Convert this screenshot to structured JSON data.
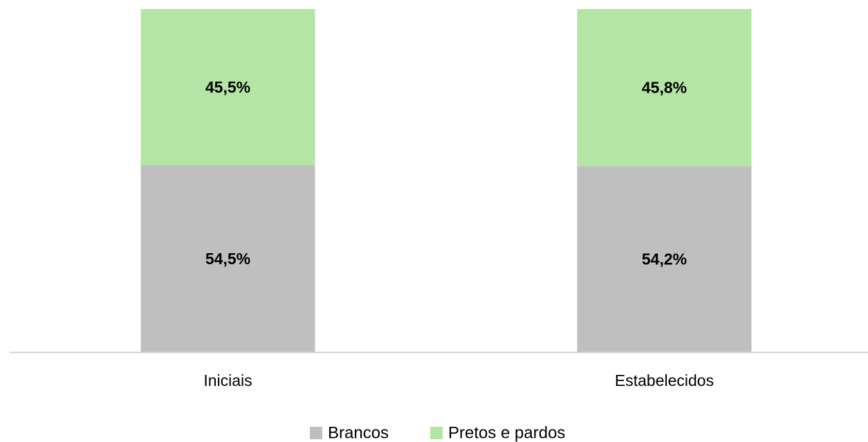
{
  "chart_data": {
    "type": "stacked_bar",
    "categories": [
      "Iniciais",
      "Estabelecidos"
    ],
    "series": [
      {
        "name": "Brancos",
        "color": "#bfbfbf",
        "values": [
          54.5,
          54.2
        ],
        "value_labels": [
          "54,5%",
          "54,2%"
        ]
      },
      {
        "name": "Pretos e pardos",
        "color": "#b3e5a4",
        "values": [
          45.5,
          45.8
        ],
        "value_labels": [
          "45,5%",
          "45,8%"
        ]
      }
    ],
    "ylim": [
      0,
      100
    ]
  }
}
